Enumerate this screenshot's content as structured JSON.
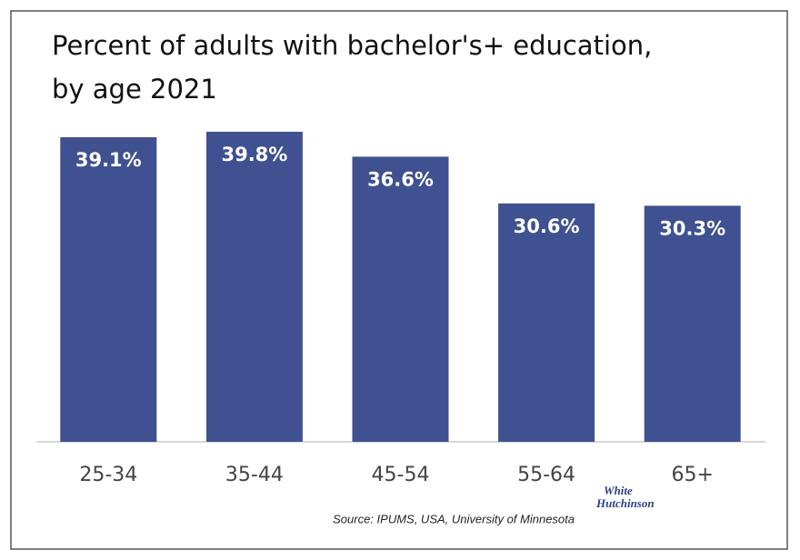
{
  "chart_data": {
    "type": "bar",
    "title_lines": [
      "Percent of adults with bachelor's+ education,",
      "by age 2021"
    ],
    "categories": [
      "25-34",
      "35-44",
      "45-54",
      "55-64",
      "65+"
    ],
    "values": [
      39.1,
      39.8,
      36.6,
      30.6,
      30.3
    ],
    "value_labels": [
      "39.1%",
      "39.8%",
      "36.6%",
      "30.6%",
      "30.3%"
    ],
    "color": "#3f5190",
    "source": "Source: IPUMS, USA, University of Minnesota",
    "logo_lines": [
      "White",
      "Hutchinson"
    ]
  }
}
